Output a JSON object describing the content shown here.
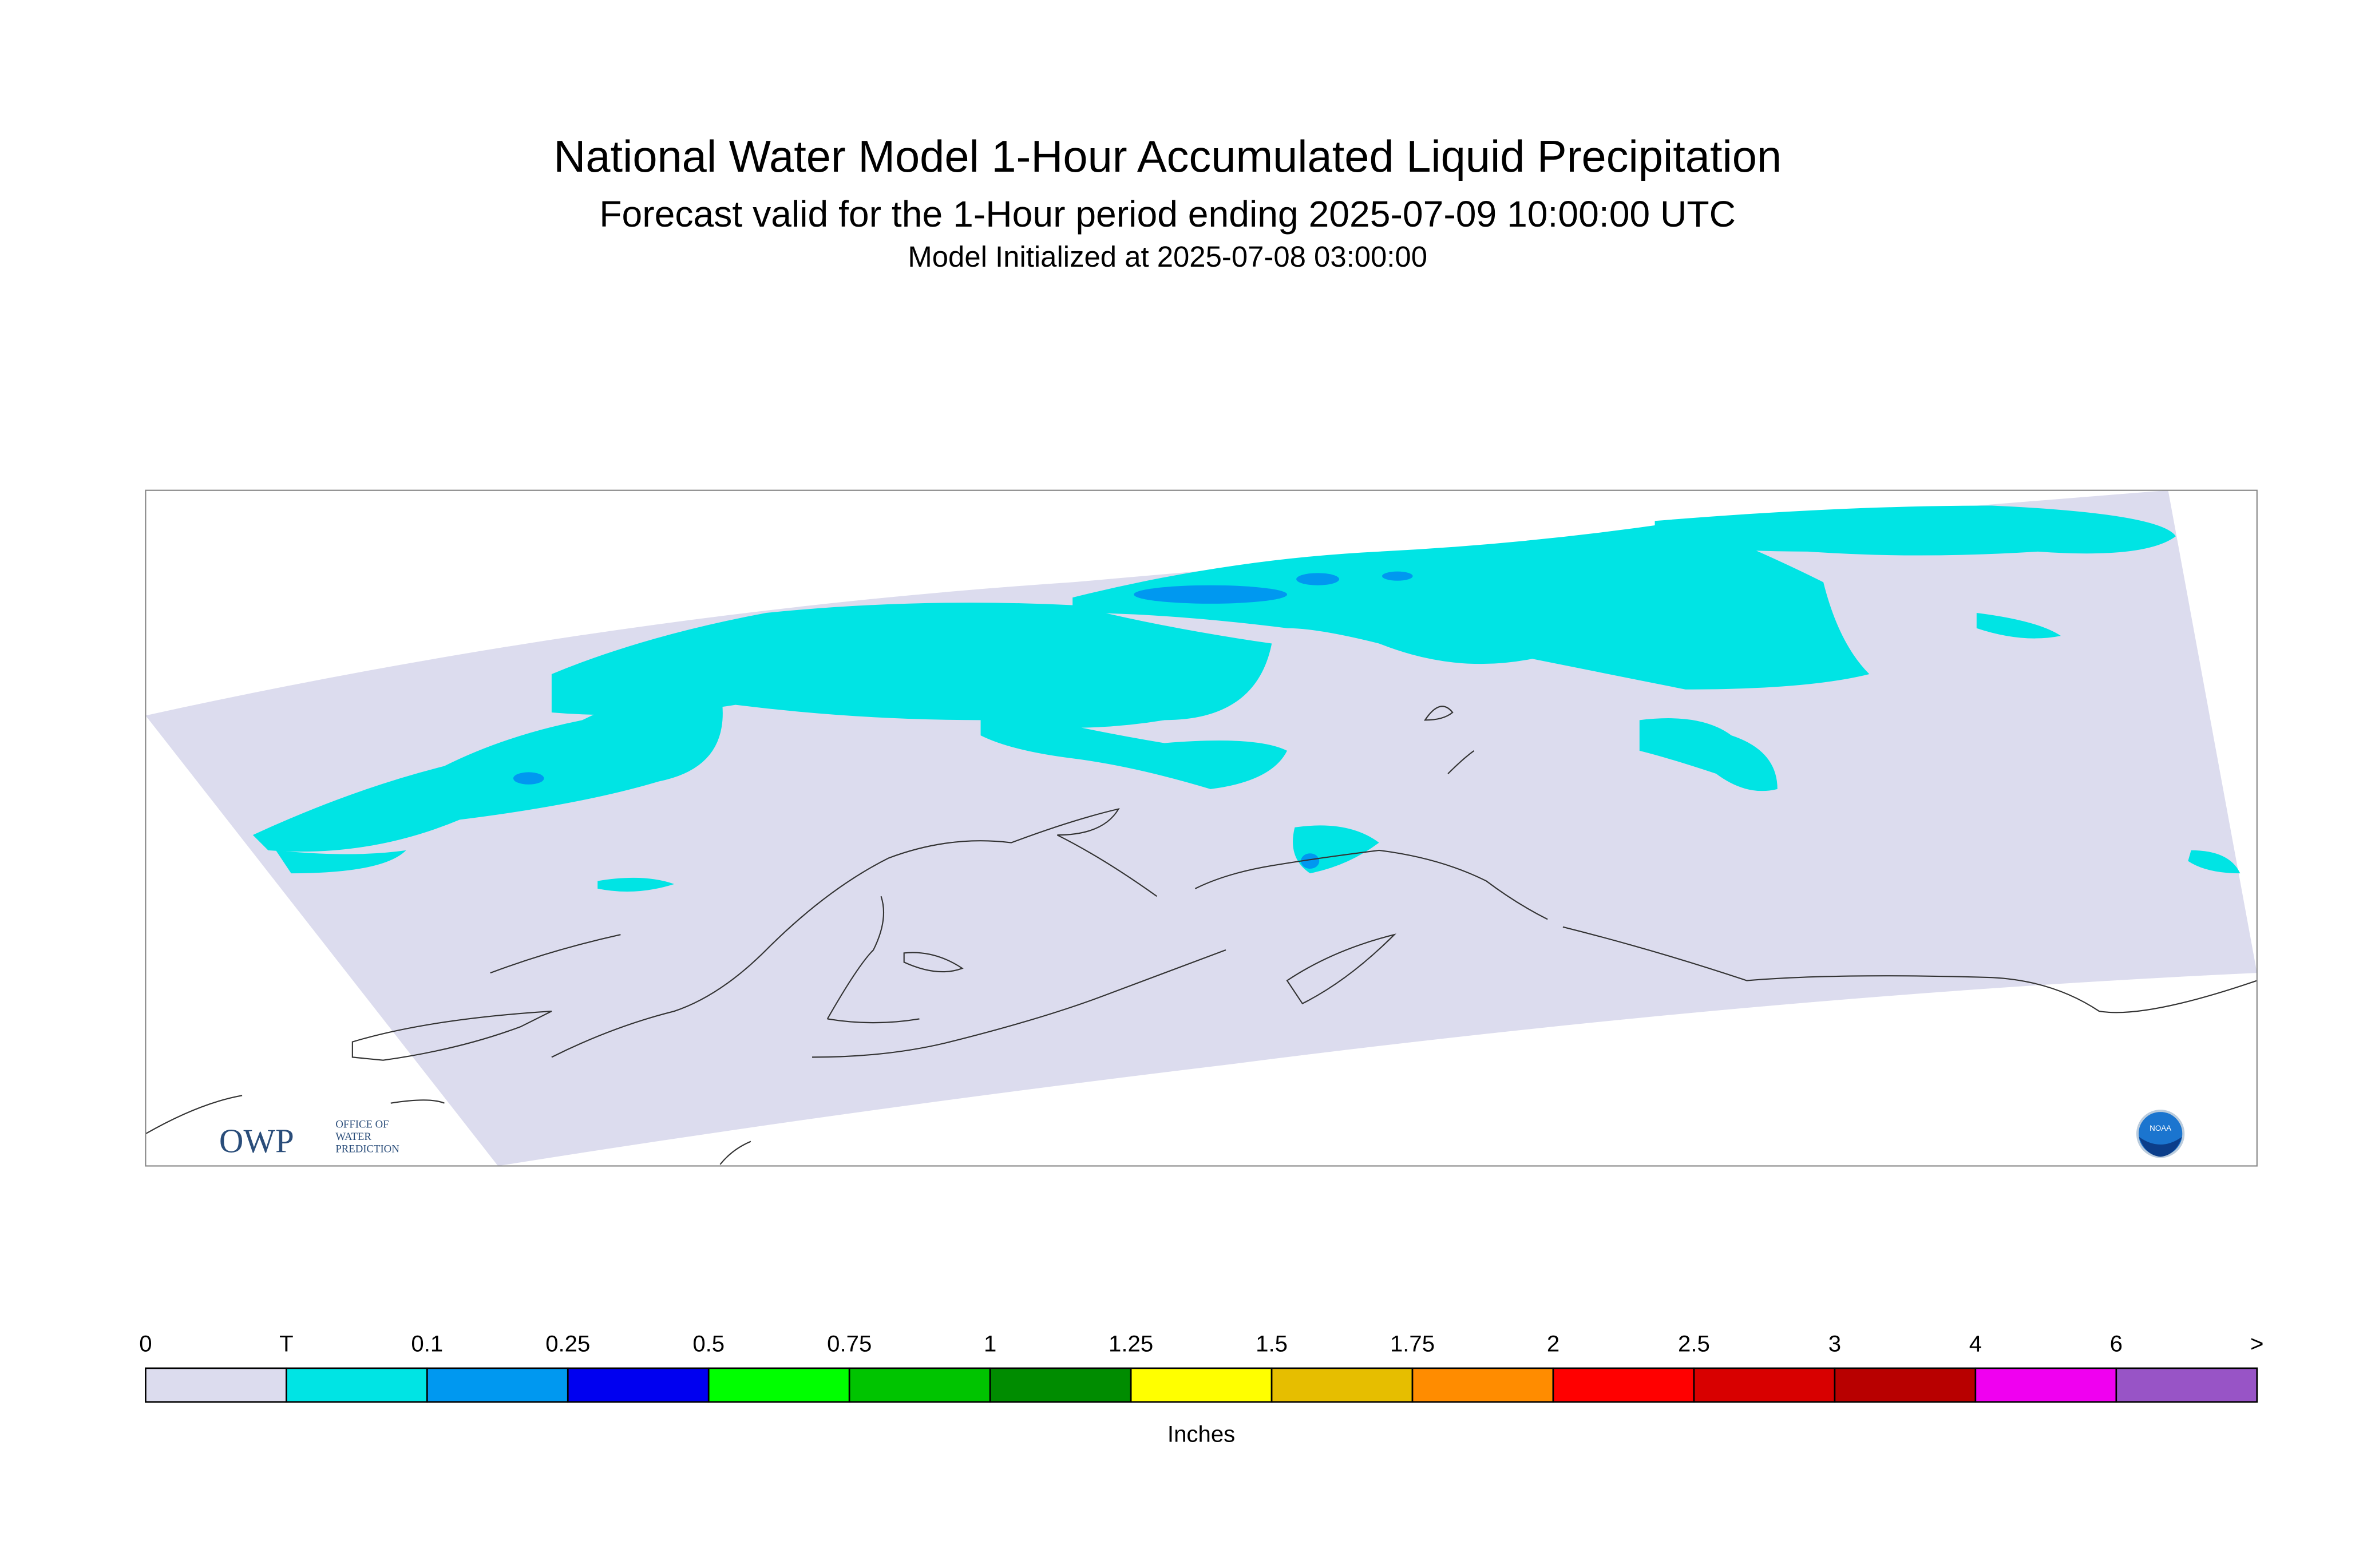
{
  "header": {
    "title": "National Water Model 1-Hour Accumulated Liquid Precipitation",
    "subtitle": "Forecast valid for the 1-Hour period ending 2025-07-09 10:00:00 UTC",
    "initialized": "Model Initialized at 2025-07-08 03:00:00"
  },
  "colorbar": {
    "labels": [
      "0",
      "T",
      "0.1",
      "0.25",
      "0.5",
      "0.75",
      "1",
      "1.25",
      "1.5",
      "1.75",
      "2",
      "2.5",
      "3",
      "4",
      "6",
      ">"
    ],
    "colors": [
      "#dcdcee",
      "#00e4e4",
      "#0098f0",
      "#0000f0",
      "#00ff00",
      "#00c400",
      "#008c00",
      "#ffff00",
      "#e6be00",
      "#ff8c00",
      "#ff0000",
      "#d80000",
      "#b80000",
      "#f000f0",
      "#9854c6"
    ],
    "unit": "Inches"
  },
  "logos": {
    "owp": "OWP",
    "owp_lines": [
      "OFFICE OF",
      "WATER",
      "PREDICTION"
    ],
    "noaa": "NOAA"
  }
}
